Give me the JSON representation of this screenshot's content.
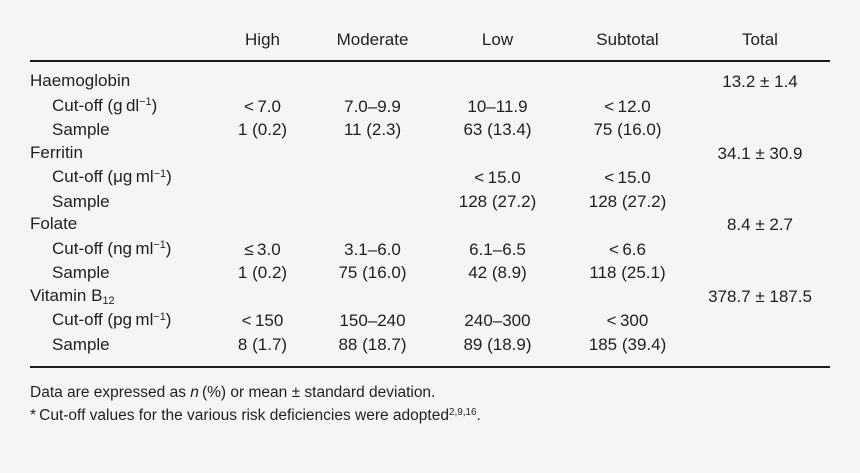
{
  "page": {
    "background_color": "#f5f5f5",
    "text_color": "#1f1f1f",
    "rule_color": "#1c1c1c"
  },
  "table": {
    "columns": {
      "label": "",
      "high": "High",
      "moderate": "Moderate",
      "low": "Low",
      "subtotal": "Subtotal",
      "total": "Total"
    },
    "sections": [
      {
        "name": "Haemoglobin",
        "name_sub": "",
        "total": "13.2 ± 1.4",
        "cutoff_label_pre": "Cut-off (g dl",
        "cutoff_sup": "−1",
        "cutoff_label_post": ")",
        "cutoff": {
          "high": "< 7.0",
          "moderate": "7.0–9.9",
          "low": "10–11.9",
          "subtotal": "< 12.0"
        },
        "sample_label": "Sample",
        "sample": {
          "high": "1 (0.2)",
          "moderate": "11 (2.3)",
          "low": "63 (13.4)",
          "subtotal": "75 (16.0)"
        }
      },
      {
        "name": "Ferritin",
        "name_sub": "",
        "total": "34.1 ± 30.9",
        "cutoff_label_pre": "Cut-off (μg ml",
        "cutoff_sup": "−1",
        "cutoff_label_post": ")",
        "cutoff": {
          "high": "",
          "moderate": "",
          "low": "< 15.0",
          "subtotal": "< 15.0"
        },
        "sample_label": "Sample",
        "sample": {
          "high": "",
          "moderate": "",
          "low": "128 (27.2)",
          "subtotal": "128 (27.2)"
        }
      },
      {
        "name": "Folate",
        "name_sub": "",
        "total": "8.4 ± 2.7",
        "cutoff_label_pre": "Cut-off (ng ml",
        "cutoff_sup": "−1",
        "cutoff_label_post": ")",
        "cutoff": {
          "high": "≤ 3.0",
          "moderate": "3.1–6.0",
          "low": "6.1–6.5",
          "subtotal": "< 6.6"
        },
        "sample_label": "Sample",
        "sample": {
          "high": "1 (0.2)",
          "moderate": "75 (16.0)",
          "low": "42 (8.9)",
          "subtotal": "118 (25.1)"
        }
      },
      {
        "name": "Vitamin B",
        "name_sub": "12",
        "total": "378.7 ± 187.5",
        "cutoff_label_pre": "Cut-off (pg ml",
        "cutoff_sup": "−1",
        "cutoff_label_post": ")",
        "cutoff": {
          "high": "< 150",
          "moderate": "150–240",
          "low": "240–300",
          "subtotal": "< 300"
        },
        "sample_label": "Sample",
        "sample": {
          "high": "8 (1.7)",
          "moderate": "88 (18.7)",
          "low": "89 (18.9)",
          "subtotal": "185 (39.4)"
        }
      }
    ]
  },
  "footnotes": {
    "line1_pre": "Data are expressed as ",
    "line1_italic": "n",
    "line1_post": " (%) or mean ± standard deviation.",
    "line2_marker": "* ",
    "line2_pre": "Cut-off values for the various risk deficiencies were adopted",
    "line2_sup": "2,9,16",
    "line2_post": "."
  }
}
